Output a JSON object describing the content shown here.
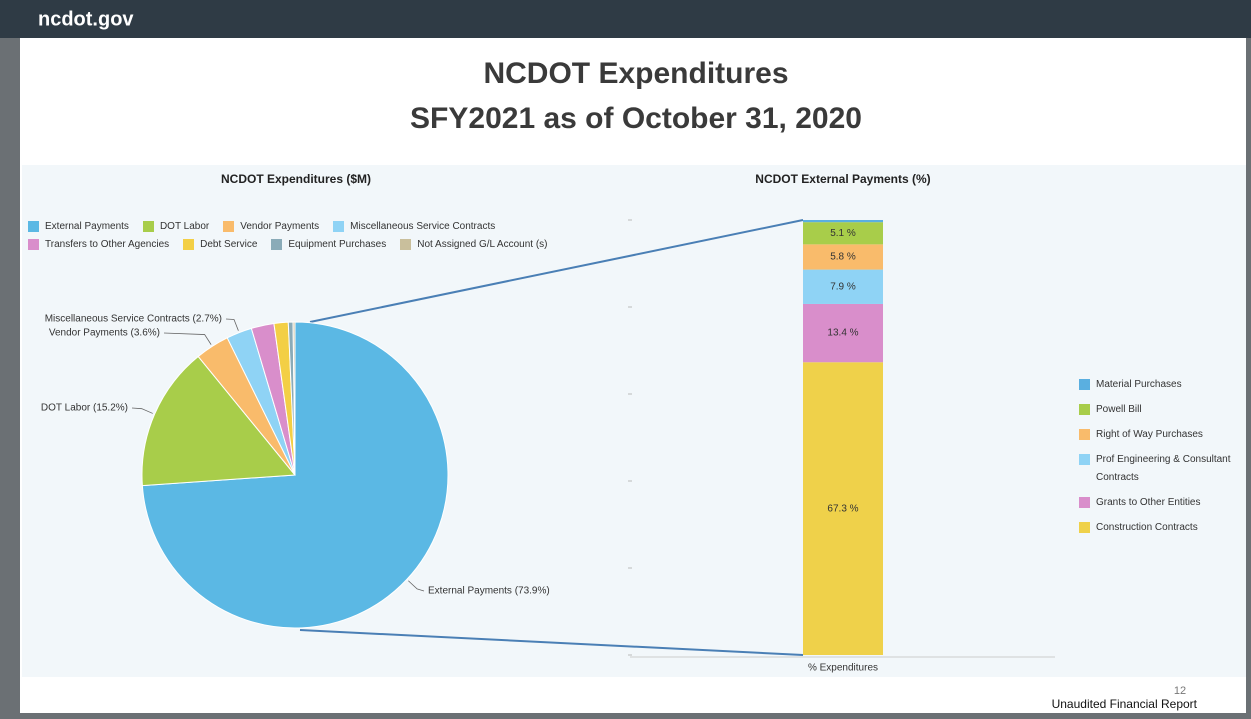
{
  "header": {
    "site": "ncdot.gov",
    "title": [
      "NCDOT Expenditures",
      "SFY2021 as of October 31, 2020"
    ]
  },
  "footer": {
    "page": "12",
    "note": "Unaudited Financial Report"
  },
  "chart_data": [
    {
      "type": "pie",
      "title": "NCDOT Expenditures ($M)",
      "categories": [
        "External Payments",
        "DOT Labor",
        "Vendor Payments",
        "Miscellaneous Service Contracts",
        "Transfers to Other Agencies",
        "Debt Service",
        "Equipment Purchases",
        "Not Assigned G/L Account (s)"
      ],
      "values": [
        73.9,
        15.2,
        3.6,
        2.7,
        2.4,
        1.5,
        0.5,
        0.2
      ],
      "value_labels": [
        "External Payments (73.9%)",
        "DOT Labor (15.2%)",
        "Vendor Payments (3.6%)",
        "Miscellaneous Service Contracts (2.7%)",
        null,
        null,
        null,
        null
      ],
      "colors": [
        "#5bb8e4",
        "#a8cd4a",
        "#f9bb6b",
        "#8fd3f5",
        "#d98ecb",
        "#f3cf45",
        "#8aabb8",
        "#c9bf9c"
      ],
      "legend": "top"
    },
    {
      "type": "bar",
      "stacked": true,
      "title": "NCDOT External Payments (%)",
      "categories": [
        "% Expenditures"
      ],
      "series": [
        {
          "name": "Material Purchases",
          "color": "#5aafe0",
          "values": [
            0.5
          ],
          "value_labels": [
            null
          ]
        },
        {
          "name": "Powell Bill",
          "color": "#a8cd4a",
          "values": [
            5.1
          ],
          "value_labels": [
            "5.1 %"
          ]
        },
        {
          "name": "Right of Way Purchases",
          "color": "#f9bb6b",
          "values": [
            5.8
          ],
          "value_labels": [
            "5.8 %"
          ]
        },
        {
          "name": "Prof Engineering & Consultant Contracts",
          "color": "#8fd3f5",
          "values": [
            7.9
          ],
          "value_labels": [
            "7.9 %"
          ]
        },
        {
          "name": "Grants to Other Entities",
          "color": "#d98ecb",
          "values": [
            13.4
          ],
          "value_labels": [
            "13.4 %"
          ]
        },
        {
          "name": "Construction Contracts",
          "color": "#efd14a",
          "values": [
            67.3
          ],
          "value_labels": [
            "67.3 %"
          ]
        }
      ],
      "ylim": [
        0,
        100
      ],
      "yticks": [
        0,
        20,
        40,
        60,
        80,
        100
      ],
      "legend": "right"
    }
  ]
}
